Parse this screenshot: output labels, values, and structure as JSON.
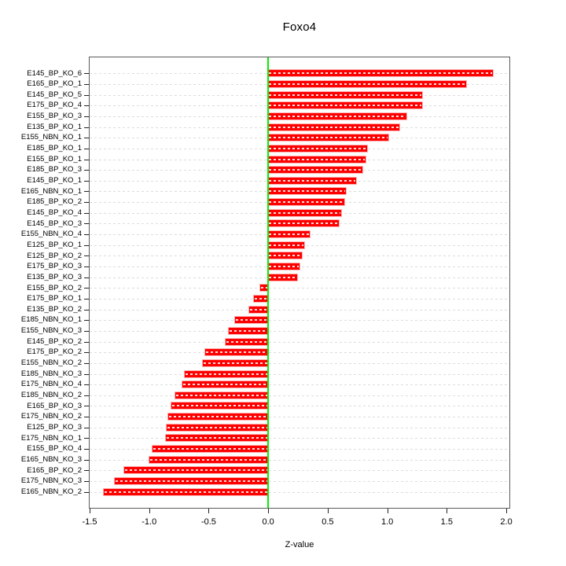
{
  "chart_data": {
    "type": "bar",
    "orientation": "horizontal",
    "title": "Foxo4",
    "xlabel": "Z-value",
    "ylabel": "",
    "categories": [
      "E145_BP_KO_6",
      "E165_BP_KO_1",
      "E145_BP_KO_5",
      "E175_BP_KO_4",
      "E155_BP_KO_3",
      "E135_BP_KO_1",
      "E155_NBN_KO_1",
      "E185_BP_KO_1",
      "E155_BP_KO_1",
      "E185_BP_KO_3",
      "E145_BP_KO_1",
      "E165_NBN_KO_1",
      "E185_BP_KO_2",
      "E145_BP_KO_4",
      "E145_BP_KO_3",
      "E155_NBN_KO_4",
      "E125_BP_KO_1",
      "E125_BP_KO_2",
      "E175_BP_KO_3",
      "E135_BP_KO_3",
      "E155_BP_KO_2",
      "E175_BP_KO_1",
      "E135_BP_KO_2",
      "E185_NBN_KO_1",
      "E155_NBN_KO_3",
      "E145_BP_KO_2",
      "E175_BP_KO_2",
      "E155_NBN_KO_2",
      "E185_NBN_KO_3",
      "E175_NBN_KO_4",
      "E185_NBN_KO_2",
      "E165_BP_KO_3",
      "E175_NBN_KO_2",
      "E125_BP_KO_3",
      "E175_NBN_KO_1",
      "E155_BP_KO_4",
      "E165_NBN_KO_3",
      "E165_BP_KO_2",
      "E175_NBN_KO_3",
      "E165_NBN_KO_2"
    ],
    "values": [
      1.89,
      1.66,
      1.29,
      1.29,
      1.16,
      1.1,
      1.01,
      0.83,
      0.82,
      0.79,
      0.74,
      0.65,
      0.64,
      0.61,
      0.59,
      0.35,
      0.3,
      0.28,
      0.26,
      0.24,
      -0.07,
      -0.12,
      -0.16,
      -0.28,
      -0.33,
      -0.36,
      -0.53,
      -0.55,
      -0.7,
      -0.72,
      -0.78,
      -0.81,
      -0.84,
      -0.85,
      -0.86,
      -0.97,
      -1.0,
      -1.21,
      -1.29,
      -1.38
    ],
    "xlim": [
      -1.5,
      2.026
    ],
    "x_ticks": [
      -1.5,
      -1.0,
      -0.5,
      0.0,
      0.5,
      1.0,
      1.5,
      2.0
    ],
    "x_tick_labels": [
      "-1.5",
      "-1.0",
      "-0.5",
      "0.0",
      "0.5",
      "1.0",
      "1.5",
      "2.0"
    ],
    "zero_line": 0.0,
    "grid": true,
    "legend": false,
    "colors": {
      "bar": "#ff0000",
      "bar_border": "#ffb0b0",
      "zero_line": "#00ee00",
      "grid": "#dcdcdc",
      "frame": "#5a5a5a",
      "background": "#ffffff"
    }
  }
}
